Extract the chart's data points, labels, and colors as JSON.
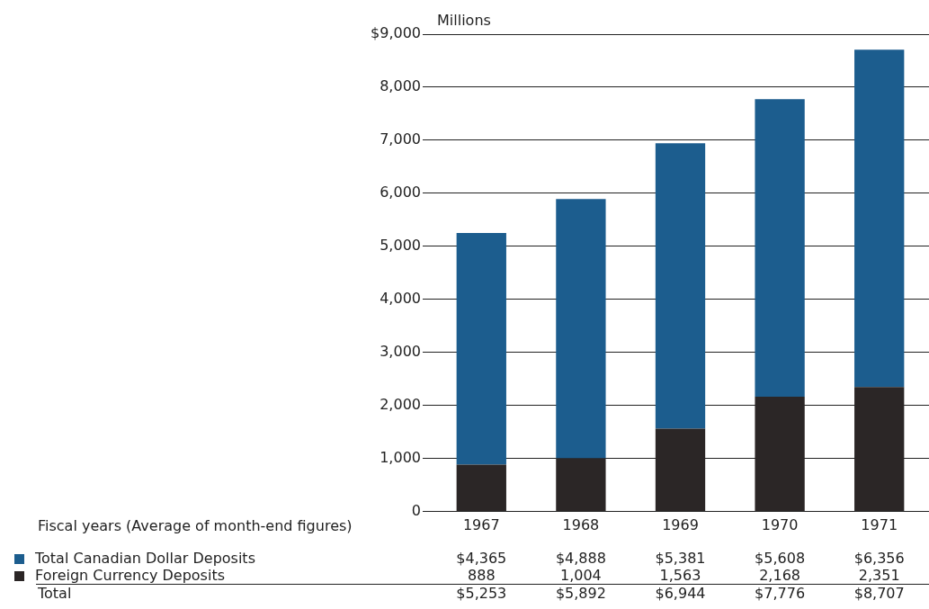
{
  "chart_data": {
    "type": "bar",
    "stacked": true,
    "ylabel": "Millions",
    "xlabel": "Fiscal years (Average of month-end figures)",
    "categories": [
      "1967",
      "1968",
      "1969",
      "1970",
      "1971"
    ],
    "series": [
      {
        "name": "Foreign Currency Deposits",
        "color": "#2b2626",
        "values": [
          888,
          1004,
          1563,
          2168,
          2351
        ],
        "value_labels": [
          "888",
          "1,004",
          "1,563",
          "2,168",
          "2,351"
        ]
      },
      {
        "name": "Total Canadian Dollar Deposits",
        "color": "#1c5d8e",
        "values": [
          4365,
          4888,
          5381,
          5608,
          6356
        ],
        "value_labels": [
          "$4,365",
          "$4,888",
          "$5,381",
          "$5,608",
          "$6,356"
        ]
      }
    ],
    "annotations": [
      "Total",
      "$5,253",
      "$5,892",
      "$6,944",
      "$7,776",
      "$8,707"
    ],
    "ylim": [
      0,
      9000
    ],
    "yticks": [
      0,
      {
        "value": 1000,
        "label": "1,000"
      },
      {
        "value": 2000,
        "label": "2,000"
      },
      {
        "value": 3000,
        "label": "3,000"
      },
      {
        "value": 4000,
        "label": "4,000"
      },
      {
        "value": 5000,
        "label": "5,000"
      },
      {
        "value": 6000,
        "label": "6,000"
      },
      {
        "value": 7000,
        "label": "7,000"
      },
      {
        "value": 8000,
        "label": "8,000"
      },
      {
        "value": 9000,
        "label": "$9,000"
      }
    ],
    "grid": "y",
    "legend": "bottom left"
  }
}
